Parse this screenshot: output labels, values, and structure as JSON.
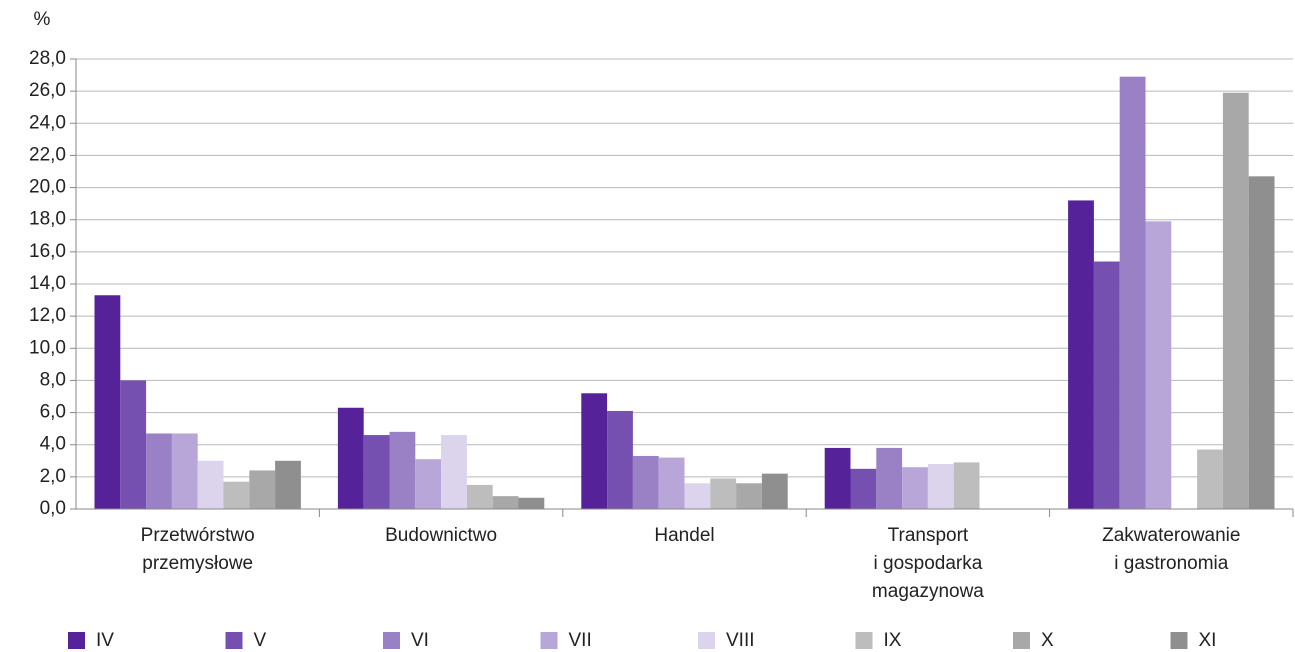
{
  "chart_data": {
    "type": "bar",
    "y_label": "%",
    "categories": [
      [
        "Przetwórstwo",
        "przemysłowe"
      ],
      [
        "Budownictwo"
      ],
      [
        "Handel"
      ],
      [
        "Transport",
        "i gospodarka",
        "magazynowa"
      ],
      [
        "Zakwaterowanie",
        "i gastronomia"
      ]
    ],
    "series": [
      {
        "name": "IV",
        "color": "#55229a",
        "values": [
          13.3,
          6.3,
          7.2,
          3.8,
          19.2
        ]
      },
      {
        "name": "V",
        "color": "#7550b0",
        "values": [
          8.0,
          4.6,
          6.1,
          2.5,
          15.4
        ]
      },
      {
        "name": "VI",
        "color": "#9a80c4",
        "values": [
          4.7,
          4.8,
          3.3,
          3.8,
          26.9
        ]
      },
      {
        "name": "VII",
        "color": "#b9a6d8",
        "values": [
          4.7,
          3.1,
          3.2,
          2.6,
          17.9
        ]
      },
      {
        "name": "VIII",
        "color": "#dcd3ec",
        "values": [
          3.0,
          4.6,
          1.6,
          2.8,
          null
        ]
      },
      {
        "name": "IX",
        "color": "#bdbdbd",
        "values": [
          1.7,
          1.5,
          1.9,
          2.9,
          3.7
        ]
      },
      {
        "name": "X",
        "color": "#a8a8a8",
        "values": [
          2.4,
          0.8,
          1.6,
          null,
          25.9
        ]
      },
      {
        "name": "XI",
        "color": "#8f8f8f",
        "values": [
          3.0,
          0.7,
          2.2,
          null,
          20.7
        ]
      }
    ],
    "ylim": [
      0,
      28
    ],
    "yticks": [
      {
        "value": 0,
        "label": "0,0"
      },
      {
        "value": 2,
        "label": "2,0"
      },
      {
        "value": 4,
        "label": "4,0"
      },
      {
        "value": 6,
        "label": "6,0"
      },
      {
        "value": 8,
        "label": "8,0"
      },
      {
        "value": 10,
        "label": "10,0"
      },
      {
        "value": 12,
        "label": "12,0"
      },
      {
        "value": 14,
        "label": "14,0"
      },
      {
        "value": 16,
        "label": "16,0"
      },
      {
        "value": 18,
        "label": "18,0"
      },
      {
        "value": 20,
        "label": "20,0"
      },
      {
        "value": 22,
        "label": "22,0"
      },
      {
        "value": 24,
        "label": "24,0"
      },
      {
        "value": 26,
        "label": "26,0"
      },
      {
        "value": 28,
        "label": "28,0"
      }
    ],
    "grid": true,
    "legend": "bottom"
  }
}
